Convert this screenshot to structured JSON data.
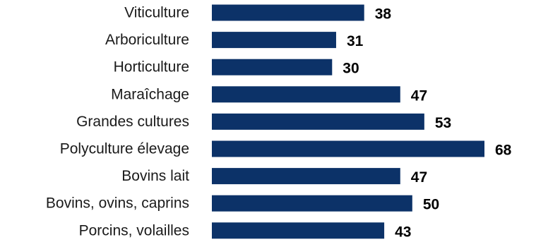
{
  "chart_data": {
    "type": "bar",
    "orientation": "horizontal",
    "categories": [
      "Viticulture",
      "Arboriculture",
      "Horticulture",
      "Maraîchage",
      "Grandes cultures",
      "Polyculture élevage",
      "Bovins lait",
      "Bovins, ovins, caprins",
      "Porcins, volailles"
    ],
    "values": [
      38,
      31,
      30,
      47,
      53,
      68,
      47,
      50,
      43
    ],
    "xlim": [
      0,
      68
    ],
    "grid": false,
    "legend": "none",
    "bar_color": "#0c3268"
  }
}
